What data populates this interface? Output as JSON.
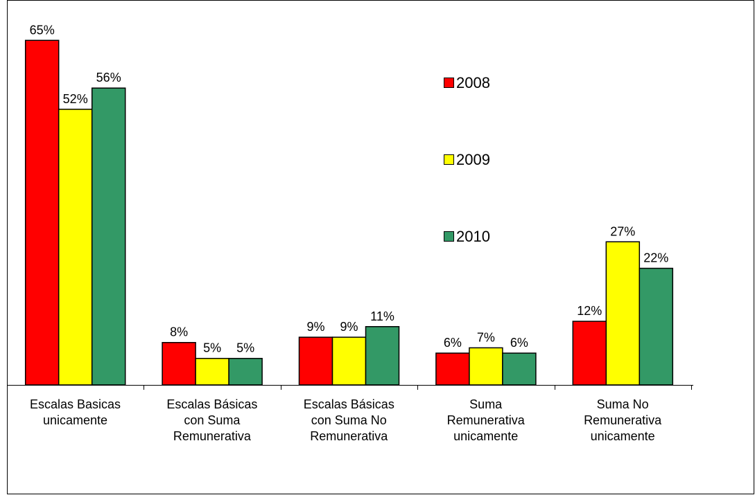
{
  "chart_data": {
    "type": "bar",
    "categories": [
      "Escalas Basicas\nunicamente",
      "Escalas Básicas\ncon Suma\nRemunerativa",
      "Escalas Básicas\ncon Suma No\nRemunerativa",
      "Suma\nRemunerativa\nunicamente",
      "Suma No\nRemunerativa\nunicamente"
    ],
    "series": [
      {
        "name": "2008",
        "color": "#ff0000",
        "values": [
          65,
          8,
          9,
          6,
          12
        ],
        "value_labels": [
          "65%",
          "8%",
          "9%",
          "6%",
          "12%"
        ]
      },
      {
        "name": "2009",
        "color": "#ffff00",
        "values": [
          52,
          5,
          9,
          7,
          27
        ],
        "value_labels": [
          "52%",
          "5%",
          "9%",
          "7%",
          "27%"
        ]
      },
      {
        "name": "2010",
        "color": "#339966",
        "values": [
          56,
          5,
          11,
          6,
          22
        ],
        "value_labels": [
          "56%",
          "5%",
          "11%",
          "6%",
          "22%"
        ]
      }
    ],
    "ylim": [
      0,
      70
    ]
  }
}
